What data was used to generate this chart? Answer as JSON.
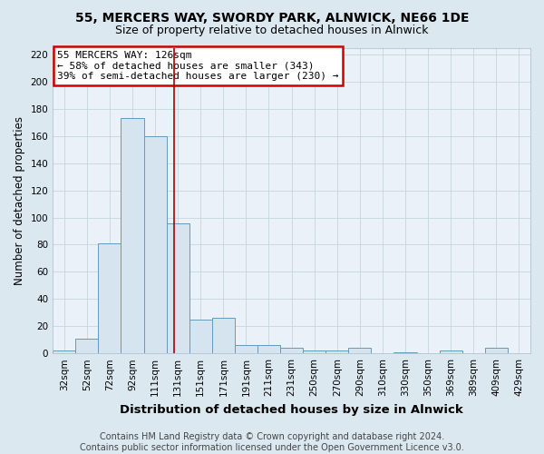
{
  "title": "55, MERCERS WAY, SWORDY PARK, ALNWICK, NE66 1DE",
  "subtitle": "Size of property relative to detached houses in Alnwick",
  "xlabel": "Distribution of detached houses by size in Alnwick",
  "ylabel": "Number of detached properties",
  "categories": [
    "32sqm",
    "52sqm",
    "72sqm",
    "92sqm",
    "111sqm",
    "131sqm",
    "151sqm",
    "171sqm",
    "191sqm",
    "211sqm",
    "231sqm",
    "250sqm",
    "270sqm",
    "290sqm",
    "310sqm",
    "330sqm",
    "350sqm",
    "369sqm",
    "389sqm",
    "409sqm",
    "429sqm"
  ],
  "values": [
    2,
    11,
    81,
    173,
    160,
    96,
    25,
    26,
    6,
    6,
    4,
    2,
    2,
    4,
    0,
    1,
    0,
    2,
    0,
    4,
    0
  ],
  "bar_color": "#d6e4f0",
  "bar_edge_color": "#6699bb",
  "vline_x": 4.85,
  "vline_color": "#aa0000",
  "annotation_text": "55 MERCERS WAY: 126sqm\n← 58% of detached houses are smaller (343)\n39% of semi-detached houses are larger (230) →",
  "annotation_box_color": "#cc0000",
  "ylim": [
    0,
    225
  ],
  "yticks": [
    0,
    20,
    40,
    60,
    80,
    100,
    120,
    140,
    160,
    180,
    200,
    220
  ],
  "footer_text": "Contains HM Land Registry data © Crown copyright and database right 2024.\nContains public sector information licensed under the Open Government Licence v3.0.",
  "bg_color": "#dce8f0",
  "plot_bg_color": "#eaf1f8",
  "title_fontsize": 10,
  "subtitle_fontsize": 9,
  "xlabel_fontsize": 9.5,
  "ylabel_fontsize": 8.5,
  "tick_fontsize": 7.5,
  "footer_fontsize": 7,
  "grid_color": "#c5d5e0"
}
